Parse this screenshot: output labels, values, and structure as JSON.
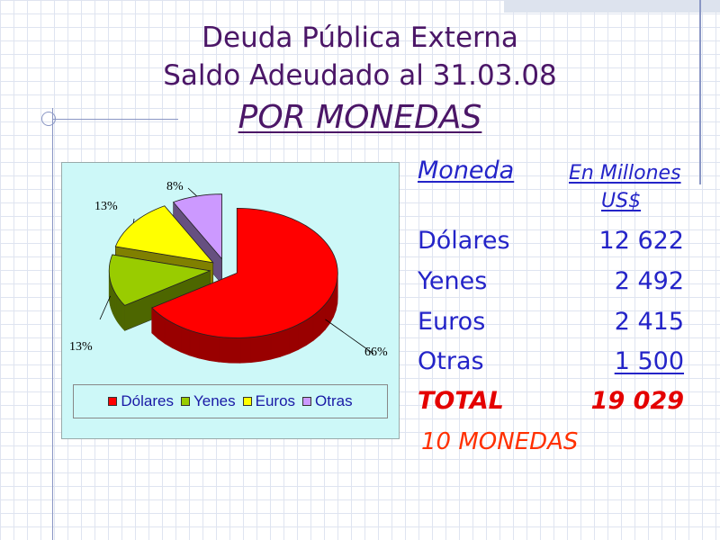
{
  "title": {
    "line1": "Deuda Pública Externa",
    "line2": "Saldo Adeudado al 31.03.08",
    "line3": "POR MONEDAS"
  },
  "table": {
    "header_currency": "Moneda",
    "header_unit_line1": "En Millones",
    "header_unit_line2": "US$",
    "rows": [
      {
        "name": "Dólares",
        "value": "12 622"
      },
      {
        "name": "Yenes",
        "value": "2 492"
      },
      {
        "name": "Euros",
        "value": "2 415"
      },
      {
        "name": "Otras",
        "value": "1 500"
      }
    ],
    "total_label": "TOTAL",
    "total_value": "19 029",
    "footnote": "10 MONEDAS"
  },
  "chart_data": {
    "type": "pie",
    "style": "3d-exploded",
    "categories": [
      "Dólares",
      "Yenes",
      "Euros",
      "Otras"
    ],
    "values": [
      66,
      13,
      13,
      8
    ],
    "labels": [
      "66%",
      "13%",
      "13%",
      "8%"
    ],
    "colors": [
      "#ff0000",
      "#99cc00",
      "#ffff00",
      "#cc99ff"
    ],
    "side_colors": [
      "#990000",
      "#4d6600",
      "#808000",
      "#665080"
    ],
    "legend": [
      "Dólares",
      "Yenes",
      "Euros",
      "Otras"
    ],
    "legend_position": "bottom",
    "background": "#ccf8f8"
  }
}
